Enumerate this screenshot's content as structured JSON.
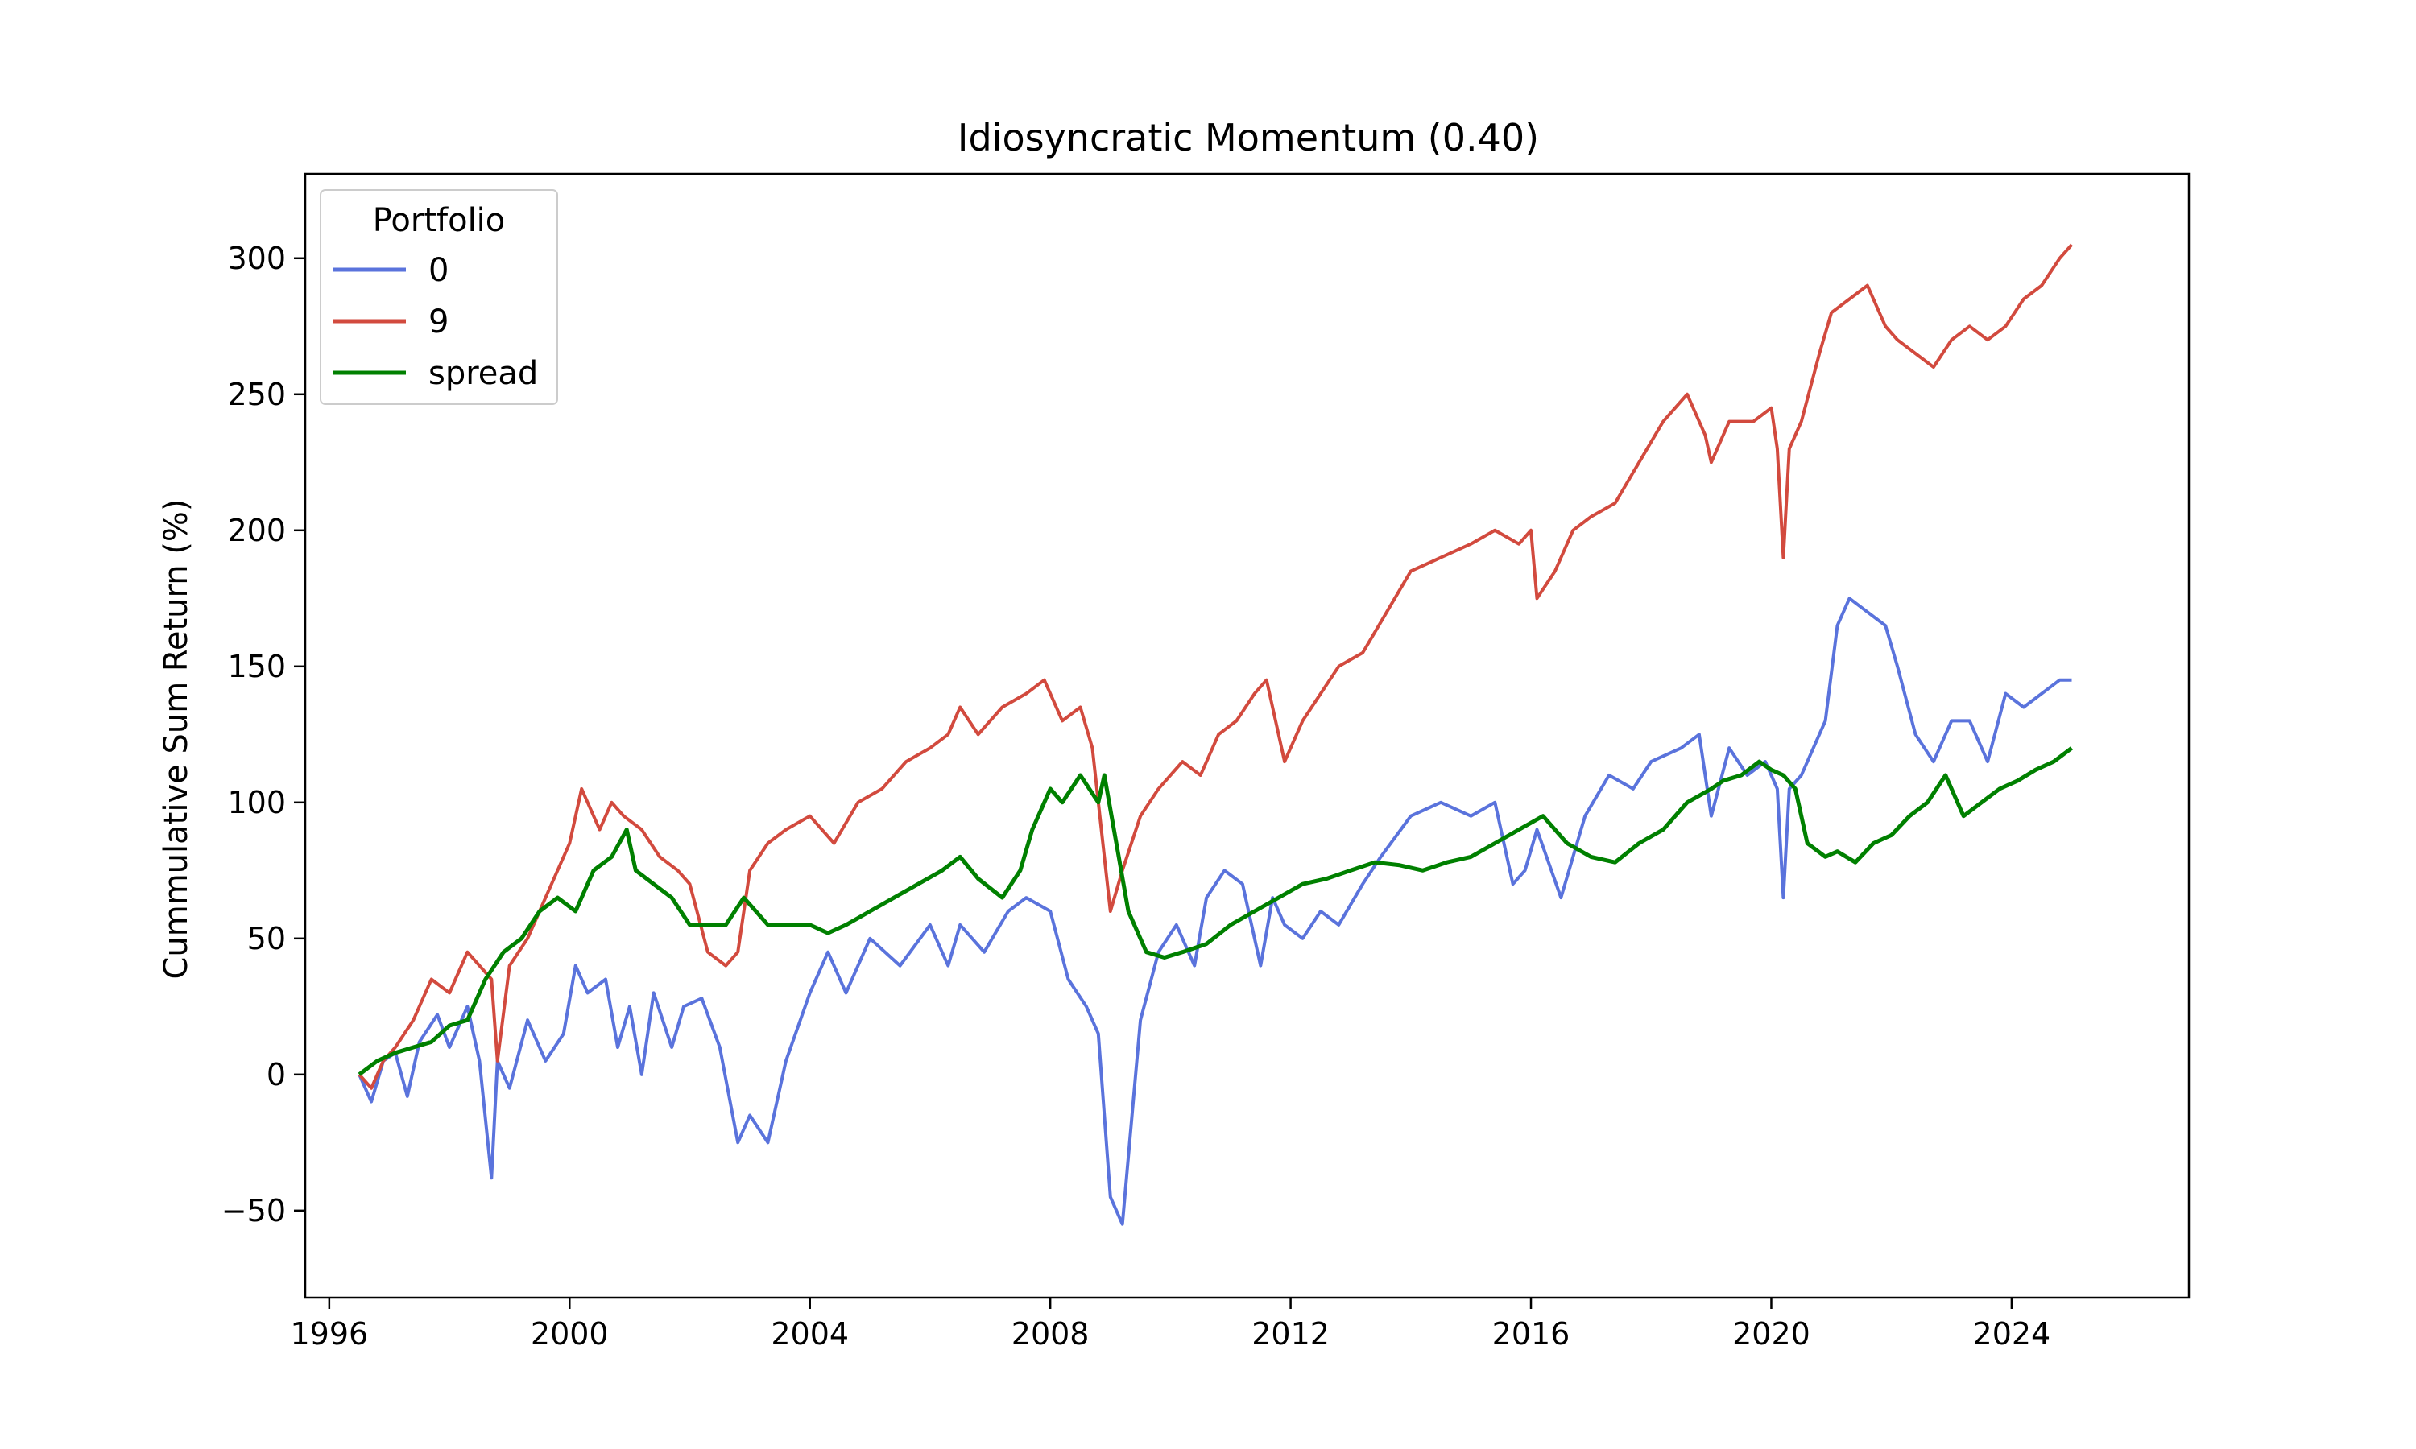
{
  "chart_data": {
    "type": "line",
    "title": "Idiosyncratic Momentum (0.40)",
    "xlabel": "",
    "ylabel": "Cummulative Sum Return (%)",
    "xlim": [
      1995.6,
      2026.95
    ],
    "ylim": [
      -82,
      331
    ],
    "xticks": [
      1996,
      2000,
      2004,
      2008,
      2012,
      2016,
      2020,
      2024
    ],
    "yticks": [
      -50,
      0,
      50,
      100,
      150,
      200,
      250,
      300
    ],
    "grid": false,
    "legend": {
      "title": "Portfolio",
      "placement": "top-left"
    },
    "series": [
      {
        "name": "0",
        "color": "#5a73dc",
        "x": [
          1996.5,
          1996.7,
          1996.9,
          1997.1,
          1997.3,
          1997.5,
          1997.8,
          1998.0,
          1998.3,
          1998.5,
          1998.7,
          1998.8,
          1999.0,
          1999.3,
          1999.6,
          1999.9,
          2000.1,
          2000.3,
          2000.6,
          2000.8,
          2001.0,
          2001.2,
          2001.4,
          2001.7,
          2001.9,
          2002.2,
          2002.5,
          2002.8,
          2003.0,
          2003.3,
          2003.6,
          2004.0,
          2004.3,
          2004.6,
          2005.0,
          2005.5,
          2006.0,
          2006.3,
          2006.5,
          2006.9,
          2007.3,
          2007.6,
          2008.0,
          2008.3,
          2008.6,
          2008.8,
          2009.0,
          2009.2,
          2009.5,
          2009.8,
          2010.1,
          2010.4,
          2010.6,
          2010.9,
          2011.2,
          2011.5,
          2011.7,
          2011.9,
          2012.2,
          2012.5,
          2012.8,
          2013.2,
          2013.5,
          2014.0,
          2014.5,
          2015.0,
          2015.4,
          2015.7,
          2015.9,
          2016.1,
          2016.5,
          2016.9,
          2017.3,
          2017.7,
          2018.0,
          2018.5,
          2018.8,
          2019.0,
          2019.3,
          2019.6,
          2019.9,
          2020.1,
          2020.2,
          2020.3,
          2020.5,
          2020.7,
          2020.9,
          2021.1,
          2021.3,
          2021.6,
          2021.9,
          2022.1,
          2022.4,
          2022.7,
          2023.0,
          2023.3,
          2023.6,
          2023.9,
          2024.2,
          2024.5,
          2024.8,
          2025.0
        ],
        "y": [
          0,
          -10,
          5,
          8,
          -8,
          12,
          22,
          10,
          25,
          5,
          -38,
          5,
          -5,
          20,
          5,
          15,
          40,
          30,
          35,
          10,
          25,
          0,
          30,
          10,
          25,
          28,
          10,
          -25,
          -15,
          -25,
          5,
          30,
          45,
          30,
          50,
          40,
          55,
          40,
          55,
          45,
          60,
          65,
          60,
          35,
          25,
          15,
          -45,
          -55,
          20,
          45,
          55,
          40,
          65,
          75,
          70,
          40,
          65,
          55,
          50,
          60,
          55,
          70,
          80,
          95,
          100,
          95,
          100,
          70,
          75,
          90,
          65,
          95,
          110,
          105,
          115,
          120,
          125,
          95,
          120,
          110,
          115,
          105,
          65,
          105,
          110,
          120,
          130,
          165,
          175,
          170,
          165,
          150,
          125,
          115,
          130,
          130,
          115,
          140,
          135,
          140,
          145,
          145
        ]
      },
      {
        "name": "9",
        "color": "#d24a3e",
        "x": [
          1996.5,
          1996.7,
          1996.9,
          1997.1,
          1997.4,
          1997.7,
          1998.0,
          1998.3,
          1998.5,
          1998.7,
          1998.8,
          1999.0,
          1999.3,
          1999.6,
          2000.0,
          2000.2,
          2000.5,
          2000.7,
          2000.9,
          2001.2,
          2001.5,
          2001.8,
          2002.0,
          2002.3,
          2002.6,
          2002.8,
          2003.0,
          2003.3,
          2003.6,
          2004.0,
          2004.4,
          2004.8,
          2005.2,
          2005.6,
          2006.0,
          2006.3,
          2006.5,
          2006.8,
          2007.2,
          2007.6,
          2007.9,
          2008.2,
          2008.5,
          2008.7,
          2008.9,
          2009.0,
          2009.2,
          2009.5,
          2009.8,
          2010.2,
          2010.5,
          2010.8,
          2011.1,
          2011.4,
          2011.6,
          2011.9,
          2012.2,
          2012.5,
          2012.8,
          2013.2,
          2013.6,
          2014.0,
          2014.5,
          2015.0,
          2015.4,
          2015.8,
          2016.0,
          2016.1,
          2016.4,
          2016.7,
          2017.0,
          2017.4,
          2017.8,
          2018.2,
          2018.6,
          2018.9,
          2019.0,
          2019.3,
          2019.7,
          2020.0,
          2020.1,
          2020.2,
          2020.3,
          2020.5,
          2020.8,
          2021.0,
          2021.3,
          2021.6,
          2021.9,
          2022.1,
          2022.4,
          2022.7,
          2023.0,
          2023.3,
          2023.6,
          2023.9,
          2024.2,
          2024.5,
          2024.8,
          2025.0
        ],
        "y": [
          0,
          -5,
          5,
          10,
          20,
          35,
          30,
          45,
          40,
          35,
          5,
          40,
          50,
          65,
          85,
          105,
          90,
          100,
          95,
          90,
          80,
          75,
          70,
          45,
          40,
          45,
          75,
          85,
          90,
          95,
          85,
          100,
          105,
          115,
          120,
          125,
          135,
          125,
          135,
          140,
          145,
          130,
          135,
          120,
          80,
          60,
          75,
          95,
          105,
          115,
          110,
          125,
          130,
          140,
          145,
          115,
          130,
          140,
          150,
          155,
          170,
          185,
          190,
          195,
          200,
          195,
          200,
          175,
          185,
          200,
          205,
          210,
          225,
          240,
          250,
          235,
          225,
          240,
          240,
          245,
          230,
          190,
          230,
          240,
          265,
          280,
          285,
          290,
          275,
          270,
          265,
          260,
          270,
          275,
          270,
          275,
          285,
          290,
          300,
          305
        ]
      },
      {
        "name": "spread",
        "color": "#008000",
        "x": [
          1996.5,
          1996.8,
          1997.1,
          1997.4,
          1997.7,
          1998.0,
          1998.3,
          1998.6,
          1998.9,
          1999.2,
          1999.5,
          1999.8,
          2000.1,
          2000.4,
          2000.7,
          2000.95,
          2001.1,
          2001.4,
          2001.7,
          2002.0,
          2002.3,
          2002.6,
          2002.9,
          2003.1,
          2003.3,
          2003.6,
          2004.0,
          2004.3,
          2004.6,
          2005.0,
          2005.4,
          2005.8,
          2006.2,
          2006.5,
          2006.8,
          2007.2,
          2007.5,
          2007.7,
          2008.0,
          2008.2,
          2008.5,
          2008.8,
          2008.9,
          2009.1,
          2009.3,
          2009.6,
          2009.9,
          2010.2,
          2010.6,
          2011.0,
          2011.4,
          2011.8,
          2012.2,
          2012.6,
          2013.0,
          2013.4,
          2013.8,
          2014.2,
          2014.6,
          2015.0,
          2015.4,
          2015.8,
          2016.2,
          2016.6,
          2017.0,
          2017.4,
          2017.8,
          2018.2,
          2018.6,
          2019.0,
          2019.2,
          2019.5,
          2019.8,
          2020.0,
          2020.2,
          2020.4,
          2020.6,
          2020.9,
          2021.1,
          2021.4,
          2021.7,
          2022.0,
          2022.3,
          2022.6,
          2022.9,
          2023.2,
          2023.5,
          2023.8,
          2024.1,
          2024.4,
          2024.7,
          2025.0
        ],
        "y": [
          0,
          5,
          8,
          10,
          12,
          18,
          20,
          35,
          45,
          50,
          60,
          65,
          60,
          75,
          80,
          90,
          75,
          70,
          65,
          55,
          55,
          55,
          65,
          60,
          55,
          55,
          55,
          52,
          55,
          60,
          65,
          70,
          75,
          80,
          72,
          65,
          75,
          90,
          105,
          100,
          110,
          100,
          110,
          85,
          60,
          45,
          43,
          45,
          48,
          55,
          60,
          65,
          70,
          72,
          75,
          78,
          77,
          75,
          78,
          80,
          85,
          90,
          95,
          85,
          80,
          78,
          85,
          90,
          100,
          105,
          108,
          110,
          115,
          112,
          110,
          105,
          85,
          80,
          82,
          78,
          85,
          88,
          95,
          100,
          110,
          95,
          100,
          105,
          108,
          112,
          115,
          120
        ]
      }
    ]
  }
}
